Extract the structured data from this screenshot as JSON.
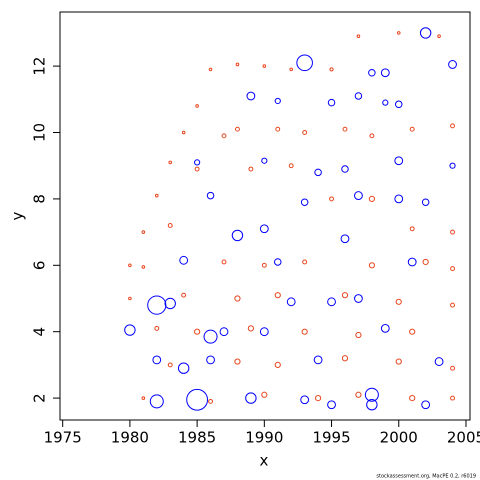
{
  "chart_data": {
    "type": "scatter",
    "x_label": "x",
    "y_label": "y",
    "footer": "stockassessment.org, MacPE 0.2, r6019",
    "xlim": [
      1974.8,
      2005.3
    ],
    "ylim": [
      1.34,
      13.63
    ],
    "xticks": [
      1975,
      1980,
      1985,
      1990,
      1995,
      2000,
      2005
    ],
    "yticks": [
      2,
      4,
      6,
      8,
      10,
      12
    ],
    "series": [
      {
        "color": "#0000ff",
        "x": [
          1993,
          2002,
          2004,
          1980,
          1982,
          1983,
          1985,
          1986,
          1982,
          1998,
          1998,
          1988,
          2001,
          1984,
          1990,
          2000,
          2000,
          1997,
          1989,
          1995,
          1997,
          1999,
          1998,
          2003,
          1986,
          1982,
          1994,
          1984,
          1995,
          1993,
          1989,
          2002,
          1992,
          1995,
          1987,
          1990,
          1999,
          1997,
          1991,
          1996,
          1993,
          1994,
          1996,
          1986,
          1985,
          1991,
          1990,
          2004,
          2002,
          1999,
          2000
        ],
        "values": [
          12.1,
          13,
          12.05,
          4.05,
          4.8,
          4.85,
          1.95,
          3.85,
          1.9,
          2.1,
          1.8,
          6.9,
          6.1,
          6.15,
          7.1,
          9.15,
          8.0,
          8.1,
          11.1,
          10.9,
          11.1,
          11.8,
          11.8,
          3.1,
          3.15,
          3.15,
          3.15,
          2.9,
          1.8,
          1.95,
          2.0,
          1.8,
          4.9,
          4.9,
          4.0,
          4.0,
          4.1,
          5.0,
          6.1,
          6.8,
          7.9,
          8.8,
          8.9,
          8.1,
          9.1,
          10.95,
          9.15,
          9.0,
          7.9,
          10.9,
          10.85
        ],
        "sizes": [
          6,
          4,
          3,
          4,
          7,
          4,
          8,
          5,
          5,
          5,
          4,
          4,
          3,
          3,
          3,
          3,
          3,
          3,
          3,
          2.5,
          2.5,
          3,
          2.5,
          3,
          3,
          3,
          3,
          4,
          3,
          3,
          4,
          3,
          3,
          3,
          3,
          3,
          3,
          3,
          2.5,
          3,
          2.5,
          2.5,
          2.5,
          2.5,
          2,
          2,
          2,
          2,
          2.5,
          2,
          2.5
        ]
      },
      {
        "color": "#e8461e",
        "x": [
          1986,
          1985,
          1984,
          1983,
          1982,
          1981,
          1980,
          1980,
          1981,
          1983,
          1985,
          1987,
          1988,
          1990,
          1992,
          1995,
          1997,
          2000,
          2003,
          1988,
          1991,
          1993,
          1996,
          1998,
          2001,
          2004,
          1989,
          1992,
          1995,
          1998,
          2001,
          2004,
          1987,
          1990,
          1993,
          1998,
          2002,
          2004,
          1984,
          1988,
          1991,
          1996,
          2000,
          2004,
          1982,
          1985,
          1989,
          1993,
          1997,
          2001,
          1983,
          1988,
          1991,
          1996,
          2000,
          2004,
          1981,
          1986,
          1990,
          1994,
          1997,
          2001,
          2004
        ],
        "values": [
          11.9,
          10.8,
          10.0,
          9.1,
          8.1,
          7.0,
          6.0,
          5.0,
          5.95,
          7.2,
          8.9,
          9.9,
          12.05,
          12.0,
          11.9,
          11.9,
          12.9,
          13.0,
          12.9,
          10.1,
          10.1,
          10.0,
          10.1,
          9.9,
          10.1,
          10.2,
          8.9,
          9.0,
          8.0,
          8.0,
          7.1,
          7.0,
          6.1,
          6.0,
          6.1,
          6.0,
          6.1,
          5.9,
          5.1,
          5.0,
          5.1,
          5.1,
          4.9,
          4.8,
          4.1,
          4.0,
          4.1,
          4.0,
          3.9,
          4.0,
          3.0,
          3.1,
          3.0,
          3.2,
          3.1,
          2.9,
          2.0,
          1.9,
          2.1,
          2.0,
          2.1,
          2.0,
          2.0
        ],
        "sizes": [
          1,
          1,
          1,
          1,
          1,
          1,
          1,
          1,
          1,
          1.5,
          1.5,
          1.5,
          1,
          1,
          1,
          1.2,
          1,
          1,
          1,
          1.5,
          1.5,
          1.5,
          1.5,
          1.5,
          1.5,
          1.5,
          1.5,
          1.5,
          1.5,
          2,
          1.5,
          1.5,
          1.5,
          1.5,
          1.5,
          2,
          2,
          1.5,
          1.5,
          2,
          2,
          2,
          2,
          1.5,
          1.5,
          2,
          2,
          2,
          2,
          2,
          1.5,
          2,
          2,
          2,
          2,
          1.5,
          1,
          1.5,
          2,
          2,
          2,
          2,
          1.5
        ]
      }
    ]
  }
}
